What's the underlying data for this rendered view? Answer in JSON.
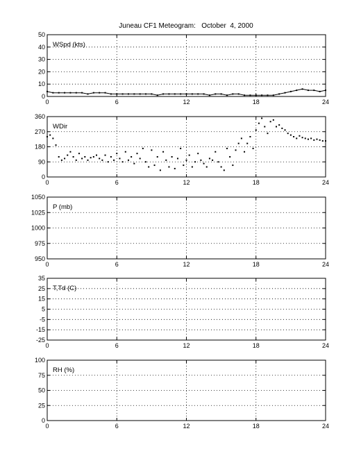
{
  "figure_title": "Juneau CF1 Meteogram:   October  4, 2000",
  "chart_data": [
    {
      "type": "scatter",
      "title": "",
      "ylabel": "WSpd (kts)",
      "xlim": [
        0,
        24
      ],
      "xticks": [
        0,
        6,
        12,
        18,
        24
      ],
      "ylim": [
        0,
        50
      ],
      "yticks": [
        0,
        10,
        20,
        30,
        40,
        50
      ],
      "grid": true,
      "series": [
        {
          "x": [
            0,
            0.5,
            1,
            1.5,
            2,
            2.5,
            3,
            3.5,
            4,
            4.5,
            5,
            5.5,
            6,
            6.5,
            7,
            7.5,
            8,
            8.5,
            9,
            9.5,
            10,
            10.5,
            11,
            11.5,
            12,
            12.5,
            13,
            13.5,
            14,
            14.5,
            15,
            15.5,
            16,
            16.5,
            17,
            17.5,
            18,
            18.5,
            19,
            19.5,
            20,
            20.5,
            21,
            21.5,
            22,
            22.5,
            23,
            23.5,
            24
          ],
          "values": [
            4,
            3,
            3,
            3,
            3,
            3,
            3,
            2,
            3,
            3,
            3,
            2,
            2,
            2,
            2,
            2,
            2,
            2,
            2,
            1,
            2,
            2,
            2,
            2,
            2,
            2,
            2,
            2,
            1,
            2,
            2,
            1,
            2,
            2,
            1,
            1,
            1,
            1,
            1,
            1,
            2,
            3,
            4,
            5,
            6,
            5,
            5,
            4,
            5
          ]
        }
      ]
    },
    {
      "type": "scatter",
      "title": "",
      "ylabel": "WDir",
      "xlim": [
        0,
        24
      ],
      "xticks": [
        0,
        6,
        12,
        18,
        24
      ],
      "ylim": [
        0,
        360
      ],
      "yticks": [
        0,
        90,
        180,
        270,
        360
      ],
      "grid": true,
      "series": [
        {
          "x": [
            0,
            0.25,
            0.5,
            0.75,
            1,
            1.25,
            1.5,
            1.75,
            2,
            2.25,
            2.5,
            2.75,
            3,
            3.25,
            3.5,
            3.75,
            4,
            4.25,
            4.5,
            4.75,
            5,
            5.25,
            5.5,
            5.75,
            6,
            6.25,
            6.5,
            6.75,
            7,
            7.25,
            7.5,
            7.75,
            8,
            8.25,
            8.5,
            8.75,
            9,
            9.25,
            9.5,
            9.75,
            10,
            10.25,
            10.5,
            10.75,
            11,
            11.25,
            11.5,
            11.75,
            12,
            12.25,
            12.5,
            12.75,
            13,
            13.25,
            13.5,
            13.75,
            14,
            14.25,
            14.5,
            14.75,
            15,
            15.25,
            15.5,
            15.75,
            16,
            16.25,
            16.5,
            16.75,
            17,
            17.25,
            17.5,
            17.75,
            18,
            18.25,
            18.5,
            18.75,
            19,
            19.25,
            19.5,
            19.75,
            20,
            20.25,
            20.5,
            20.75,
            21,
            21.25,
            21.5,
            21.75,
            22,
            22.25,
            22.5,
            22.75,
            23,
            23.25,
            23.5,
            23.75,
            24
          ],
          "values": [
            240,
            250,
            230,
            190,
            120,
            100,
            110,
            130,
            150,
            120,
            100,
            140,
            110,
            120,
            100,
            115,
            120,
            130,
            110,
            100,
            130,
            90,
            120,
            100,
            140,
            110,
            90,
            150,
            100,
            120,
            80,
            140,
            110,
            170,
            90,
            60,
            160,
            70,
            120,
            40,
            150,
            100,
            60,
            120,
            50,
            110,
            170,
            70,
            100,
            130,
            60,
            90,
            140,
            100,
            80,
            60,
            110,
            100,
            150,
            90,
            60,
            40,
            170,
            120,
            70,
            160,
            200,
            230,
            150,
            200,
            240,
            170,
            280,
            320,
            350,
            300,
            260,
            330,
            340,
            300,
            310,
            290,
            280,
            260,
            250,
            240,
            230,
            245,
            235,
            230,
            225,
            230,
            220,
            225,
            220,
            215,
            215
          ]
        }
      ]
    },
    {
      "type": "scatter",
      "title": "",
      "ylabel": "P (mb)",
      "xlim": [
        0,
        24
      ],
      "xticks": [
        0,
        6,
        12,
        18,
        24
      ],
      "ylim": [
        950,
        1050
      ],
      "yticks": [
        950,
        975,
        1000,
        1025,
        1050
      ],
      "grid": true,
      "series": []
    },
    {
      "type": "scatter",
      "title": "",
      "ylabel": "T,Td (C)",
      "xlim": [
        0,
        24
      ],
      "xticks": [
        0,
        6,
        12,
        18,
        24
      ],
      "ylim": [
        -25,
        35
      ],
      "yticks": [
        -25,
        -15,
        -5,
        5,
        15,
        25,
        35
      ],
      "yticklabels": [
        "-25",
        "-15",
        "-5",
        "5",
        "15",
        "25",
        "35"
      ],
      "grid": true,
      "series": []
    },
    {
      "type": "scatter",
      "title": "",
      "ylabel": "RH (%)",
      "xlim": [
        0,
        24
      ],
      "xticks": [
        0,
        6,
        12,
        18,
        24
      ],
      "ylim": [
        0,
        100
      ],
      "yticks": [
        0,
        25,
        50,
        75,
        100
      ],
      "grid": true,
      "series": []
    }
  ]
}
